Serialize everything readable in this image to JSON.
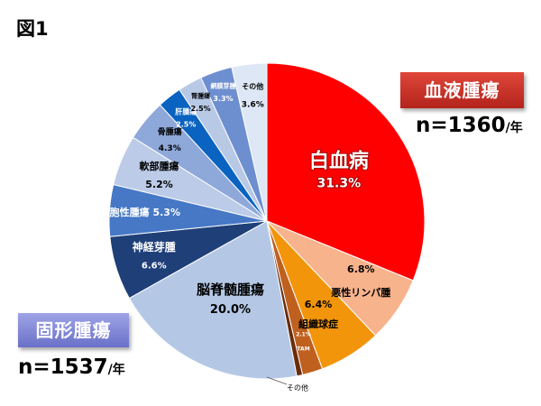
{
  "figure_title": "図1",
  "groups": {
    "blood": {
      "label": "血液腫瘍",
      "n_value": "n=1360",
      "n_unit": "/年",
      "color": "#c9302a"
    },
    "solid": {
      "label": "固形腫瘍",
      "n_value": "n=1537",
      "n_unit": "/年",
      "color": "#7e84d8"
    }
  },
  "chart_data": {
    "type": "pie",
    "start": "12 o'clock",
    "direction": "clockwise",
    "slices": [
      {
        "name": "白血病",
        "value": 31.3,
        "percent_label": "31.3%",
        "color": "#ff0000",
        "label_color": "#ffffff",
        "label_shadow": true
      },
      {
        "name": "悪性リンパ腫",
        "value": 6.8,
        "percent_label": "6.8%",
        "color": "#f7b38c",
        "label_color": "#000000"
      },
      {
        "name": "組織球症",
        "value": 6.4,
        "percent_label": "6.4%",
        "color": "#f2950b",
        "label_color": "#000000"
      },
      {
        "name": "TAM",
        "value": 2.1,
        "percent_label": "2.1%",
        "color": "#c0601e",
        "label_color": "#ffffff"
      },
      {
        "name": "その他",
        "value": 0.6,
        "percent_label": "",
        "color": "#6a2d0c",
        "label_color": "#000000"
      },
      {
        "name": "脳脊髄腫瘍",
        "value": 20.0,
        "percent_label": "20.0%",
        "color": "#b4c8e6",
        "label_color": "#000000"
      },
      {
        "name": "神経芽腫",
        "value": 6.6,
        "percent_label": "6.6%",
        "color": "#1f3f78",
        "label_color": "#ffffff"
      },
      {
        "name": "肝細胞性腫瘍",
        "value": 5.3,
        "percent_label": "5.3%",
        "color": "#4678c6",
        "label_color": "#ffffff"
      },
      {
        "name": "軟部腫瘍",
        "value": 5.2,
        "percent_label": "5.2%",
        "color": "#bccbe7",
        "label_color": "#000000"
      },
      {
        "name": "骨腫瘍",
        "value": 4.3,
        "percent_label": "4.3%",
        "color": "#8ea8d9",
        "label_color": "#000000"
      },
      {
        "name": "肝腫瘍",
        "value": 2.5,
        "percent_label": "2.5%",
        "color": "#0a63c0",
        "label_color": "#ffffff"
      },
      {
        "name": "腎腫瘍",
        "value": 2.5,
        "percent_label": "2.5%",
        "color": "#b8c9e6",
        "label_color": "#000000"
      },
      {
        "name": "網膜芽腫",
        "value": 3.3,
        "percent_label": "3.3%",
        "color": "#6d8fd0",
        "label_color": "#ffffff"
      },
      {
        "name": "その他",
        "value": 3.6,
        "percent_label": "3.6%",
        "color": "#dde7f5",
        "label_color": "#000000"
      }
    ]
  }
}
